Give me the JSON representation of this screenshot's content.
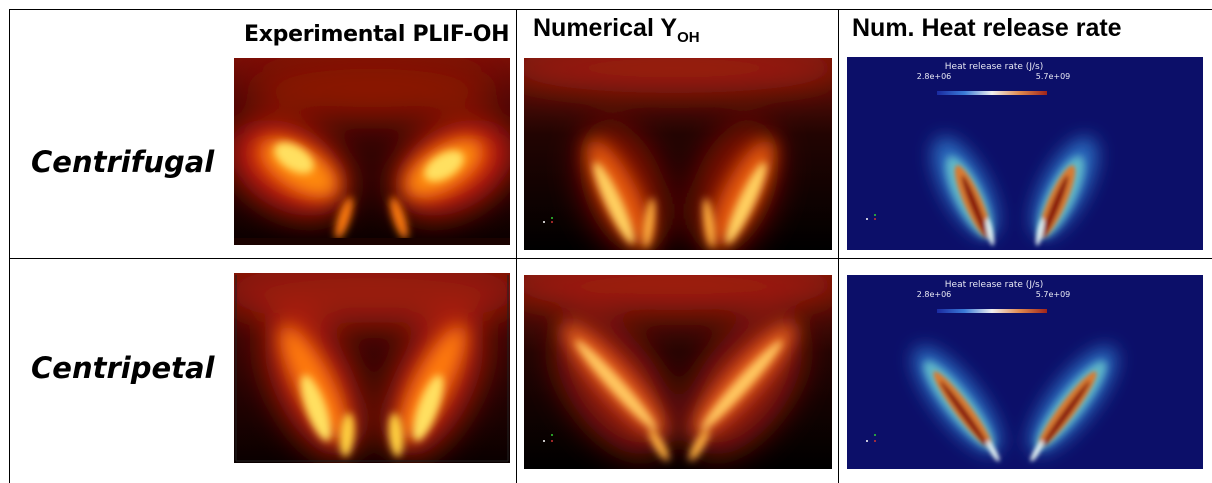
{
  "headers": {
    "experimental": "Experimental PLIF-OH",
    "numerical_main": "Numerical Y",
    "numerical_sub": "OH",
    "heat_release": "Num. Heat release rate"
  },
  "rows": [
    {
      "label": "Centrifugal"
    },
    {
      "label": "Centripetal"
    }
  ],
  "colorbar": {
    "title": "Heat release rate (J/s)",
    "min": "2.8e+06",
    "max": "5.7e+09"
  },
  "colors": {
    "hot_background": "#000000",
    "heat_background": "#0c0f69"
  }
}
